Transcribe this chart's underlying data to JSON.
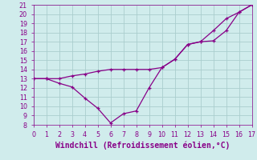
{
  "x_straight": [
    0,
    1,
    2,
    3,
    4,
    5,
    6,
    7,
    8,
    9,
    10,
    11,
    12,
    13,
    14,
    15,
    16,
    17
  ],
  "y_straight": [
    13,
    13,
    13,
    13.3,
    13.5,
    13.8,
    14,
    14,
    14,
    14,
    14.2,
    15.1,
    16.7,
    17,
    18.2,
    19.5,
    20.2,
    21
  ],
  "x_curved": [
    0,
    1,
    2,
    3,
    4,
    5,
    6,
    7,
    8,
    9,
    10,
    11,
    12,
    13,
    14,
    15,
    16,
    17
  ],
  "y_curved": [
    13,
    13,
    12.5,
    12.1,
    10.9,
    9.8,
    8.2,
    9.2,
    9.5,
    12.0,
    14.2,
    15.1,
    16.7,
    17.0,
    17.1,
    18.2,
    20.2,
    21
  ],
  "line_color": "#880088",
  "bg_color": "#d0ecec",
  "grid_color": "#aacece",
  "xlabel": "Windchill (Refroidissement éolien,°C)",
  "ylim": [
    8,
    21
  ],
  "xlim": [
    0,
    17
  ],
  "yticks": [
    8,
    9,
    10,
    11,
    12,
    13,
    14,
    15,
    16,
    17,
    18,
    19,
    20,
    21
  ],
  "xticks": [
    0,
    1,
    2,
    3,
    4,
    5,
    6,
    7,
    8,
    9,
    10,
    11,
    12,
    13,
    14,
    15,
    16,
    17
  ],
  "tick_fontsize": 5.8,
  "xlabel_fontsize": 7.0
}
